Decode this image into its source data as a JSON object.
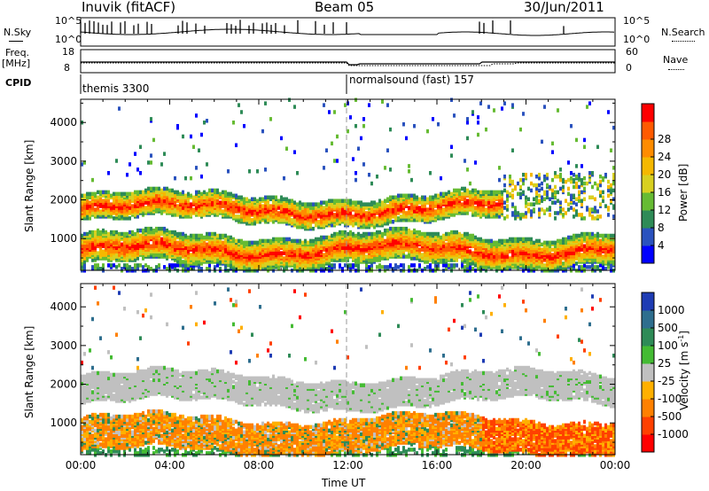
{
  "header": {
    "title": "Inuvik (fitACF)",
    "beam": "Beam 05",
    "date": "30/Jun/2011"
  },
  "top_strip": {
    "nsky_label": "N.Sky",
    "nsky_ticks": [
      "10^5",
      "10^0"
    ],
    "nsearch_label": "N.Search",
    "nsearch_ticks": [
      "10^5",
      "10^0"
    ],
    "freq_label": "Freq.",
    "freq_unit": "[MHz]",
    "freq_ticks": [
      "18",
      "8"
    ],
    "nave_label": "Nave",
    "nave_ticks": [
      "60",
      "0"
    ],
    "cpid_label": "CPID",
    "cpid_segments": [
      {
        "name": "themis 3300",
        "start_hour": 0
      },
      {
        "name": "normalsound (fast) 157",
        "start_hour": 12
      }
    ]
  },
  "chart_data": [
    {
      "type": "heatmap",
      "title": "",
      "xlabel": "",
      "ylabel": "Slant Range [km]",
      "x_ticks": [
        "00:00",
        "04:00",
        "08:00",
        "12:00",
        "16:00",
        "20:00",
        "00:00"
      ],
      "xlim_hours": [
        0,
        24
      ],
      "y_ticks": [
        1000,
        2000,
        3000,
        4000
      ],
      "ylim": [
        180,
        4600
      ],
      "colorbar": {
        "label": "Power [dB]",
        "ticks": [
          "4",
          "8",
          "12",
          "16",
          "20",
          "24",
          "28"
        ],
        "colors": [
          "#0000ff",
          "#2a52be",
          "#2e8b57",
          "#66bb33",
          "#d8d020",
          "#f5b800",
          "#ff8c00",
          "#ff5a00",
          "#ff0000"
        ]
      },
      "bands": [
        {
          "name": "near",
          "range_km": [
            300,
            1100
          ],
          "hours": [
            0,
            24
          ],
          "dominant": "red-orange"
        },
        {
          "name": "upper",
          "range_km": [
            1300,
            2400
          ],
          "hours": [
            0,
            18
          ],
          "dominant": "red-orange"
        }
      ]
    },
    {
      "type": "heatmap",
      "title": "",
      "xlabel": "Time UT",
      "ylabel": "Slant Range [km]",
      "x_ticks": [
        "00:00",
        "04:00",
        "08:00",
        "12:00",
        "16:00",
        "20:00",
        "00:00"
      ],
      "xlim_hours": [
        0,
        24
      ],
      "y_ticks": [
        1000,
        2000,
        3000,
        4000
      ],
      "ylim": [
        180,
        4600
      ],
      "colorbar": {
        "label": "Velocity [m s-1]",
        "label_unit_base": "Velocity  [m s",
        "label_exponent": "-1",
        "ticks": [
          "1000",
          "500",
          "100",
          "25",
          "-25",
          "-100",
          "-500",
          "-1000"
        ],
        "colors": [
          "#1e3cb4",
          "#2e6e8e",
          "#2e8b57",
          "#44bb33",
          "#c0c0c0",
          "#ffb000",
          "#ff8000",
          "#ff4000",
          "#ff0000"
        ]
      },
      "bands": [
        {
          "name": "ground-scatter",
          "range_km": [
            1300,
            2500
          ],
          "hours": [
            0,
            24
          ],
          "dominant": "grey"
        },
        {
          "name": "near",
          "range_km": [
            300,
            1200
          ],
          "hours": [
            0,
            24
          ],
          "dominant": "orange"
        }
      ]
    }
  ]
}
